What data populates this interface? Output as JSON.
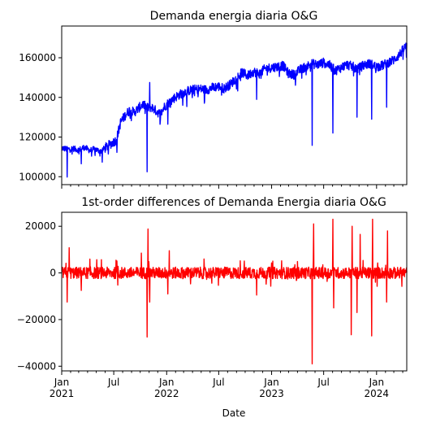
{
  "chart_data": [
    {
      "type": "line",
      "title": "Demanda energia diaria O&G",
      "xlabel": "",
      "ylabel": "",
      "x_range": [
        "2021-01-01",
        "2024-04-15"
      ],
      "ylim": [
        96000,
        176000
      ],
      "yticks": [
        100000,
        120000,
        140000,
        160000
      ],
      "ytick_labels": [
        "100000",
        "120000",
        "140000",
        "160000"
      ],
      "color": "#0000ff",
      "grid": false,
      "series": [
        {
          "x": [
            "2021-01-01",
            "2021-01-20",
            "2021-02-10",
            "2021-03-01",
            "2021-03-20",
            "2021-04-10",
            "2021-04-25",
            "2021-05-15",
            "2021-06-01",
            "2021-06-20",
            "2021-07-10",
            "2021-07-25",
            "2021-08-10",
            "2021-08-25",
            "2021-09-10",
            "2021-09-25",
            "2021-10-10",
            "2021-10-25",
            "2021-11-10",
            "2021-11-25",
            "2021-12-10",
            "2021-12-25",
            "2022-01-10",
            "2022-01-25",
            "2022-02-10",
            "2022-03-01",
            "2022-03-20",
            "2022-04-10",
            "2022-05-01",
            "2022-05-20",
            "2022-06-10",
            "2022-06-30",
            "2022-07-20",
            "2022-08-10",
            "2022-08-30",
            "2022-09-20",
            "2022-10-10",
            "2022-10-30",
            "2022-11-20",
            "2022-12-10",
            "2022-12-30",
            "2023-01-20",
            "2023-02-10",
            "2023-03-01",
            "2023-03-20",
            "2023-04-10",
            "2023-04-30",
            "2023-05-20",
            "2023-06-10",
            "2023-06-30",
            "2023-07-20",
            "2023-08-10",
            "2023-08-30",
            "2023-09-20",
            "2023-10-10",
            "2023-10-30",
            "2023-11-20",
            "2023-12-10",
            "2023-12-30",
            "2024-01-20",
            "2024-02-10",
            "2024-03-01",
            "2024-03-20",
            "2024-04-10"
          ],
          "values": [
            114500,
            113800,
            114200,
            113500,
            114800,
            113200,
            114000,
            112800,
            114500,
            116500,
            118500,
            127500,
            131000,
            133500,
            132500,
            134500,
            136500,
            134800,
            135000,
            133200,
            131500,
            135500,
            137500,
            139500,
            141000,
            142500,
            143500,
            144000,
            144200,
            143800,
            145000,
            145500,
            144500,
            146500,
            149500,
            152500,
            151000,
            153000,
            152000,
            154500,
            155000,
            155500,
            156000,
            152000,
            151500,
            154000,
            155500,
            157000,
            156500,
            157500,
            156500,
            153500,
            155000,
            156500,
            155500,
            154500,
            156500,
            157000,
            155500,
            156000,
            157500,
            159000,
            161500,
            165500
          ]
        }
      ],
      "spikes": [
        {
          "x": "2021-01-20",
          "value": 99800
        },
        {
          "x": "2021-03-10",
          "value": 106500
        },
        {
          "x": "2021-10-25",
          "value": 102500
        },
        {
          "x": "2021-11-03",
          "value": 147500
        },
        {
          "x": "2022-01-05",
          "value": 126500
        },
        {
          "x": "2022-11-10",
          "value": 139000
        },
        {
          "x": "2023-05-22",
          "value": 115800
        },
        {
          "x": "2023-08-02",
          "value": 122000
        },
        {
          "x": "2023-10-25",
          "value": 130000
        },
        {
          "x": "2023-12-15",
          "value": 129000
        },
        {
          "x": "2024-02-05",
          "value": 135000
        }
      ]
    },
    {
      "type": "line",
      "title": "1st-order differences of Demanda Energia diaria O&G",
      "xlabel": "Date",
      "ylabel": "",
      "x_range": [
        "2021-01-01",
        "2024-04-15"
      ],
      "ylim": [
        -42000,
        26000
      ],
      "yticks": [
        -40000,
        -20000,
        0,
        20000
      ],
      "ytick_labels": [
        "−40000",
        "−20000",
        "0",
        "20000"
      ],
      "xticks": [
        "2021-01-01",
        "2021-07-01",
        "2022-01-01",
        "2022-07-01",
        "2023-01-01",
        "2023-07-01",
        "2024-01-01"
      ],
      "xtick_labels": [
        "Jan",
        "Jul",
        "Jan",
        "Jul",
        "Jan",
        "Jul",
        "Jan"
      ],
      "xtick_year_labels": [
        "2021",
        "",
        "2022",
        "",
        "2023",
        "",
        "2024"
      ],
      "color": "#ff0000",
      "grid": false,
      "noise_amplitude": 2500,
      "spikes": [
        {
          "x": "2021-01-20",
          "value": -12500
        },
        {
          "x": "2021-01-27",
          "value": 10800
        },
        {
          "x": "2021-03-10",
          "value": -7500
        },
        {
          "x": "2021-10-25",
          "value": -27500
        },
        {
          "x": "2021-10-28",
          "value": 18800
        },
        {
          "x": "2021-11-03",
          "value": -12500
        },
        {
          "x": "2021-10-05",
          "value": 8500
        },
        {
          "x": "2022-01-05",
          "value": -9000
        },
        {
          "x": "2022-01-10",
          "value": 9500
        },
        {
          "x": "2022-11-10",
          "value": -9500
        },
        {
          "x": "2023-05-22",
          "value": -39000
        },
        {
          "x": "2023-05-27",
          "value": 21000
        },
        {
          "x": "2023-08-02",
          "value": 23000
        },
        {
          "x": "2023-08-05",
          "value": -15000
        },
        {
          "x": "2023-10-05",
          "value": -26500
        },
        {
          "x": "2023-10-08",
          "value": 20000
        },
        {
          "x": "2023-10-25",
          "value": -17000
        },
        {
          "x": "2023-11-05",
          "value": 16500
        },
        {
          "x": "2023-12-15",
          "value": -27000
        },
        {
          "x": "2023-12-18",
          "value": 23000
        },
        {
          "x": "2024-02-05",
          "value": -12500
        },
        {
          "x": "2024-02-08",
          "value": 18000
        }
      ]
    }
  ]
}
